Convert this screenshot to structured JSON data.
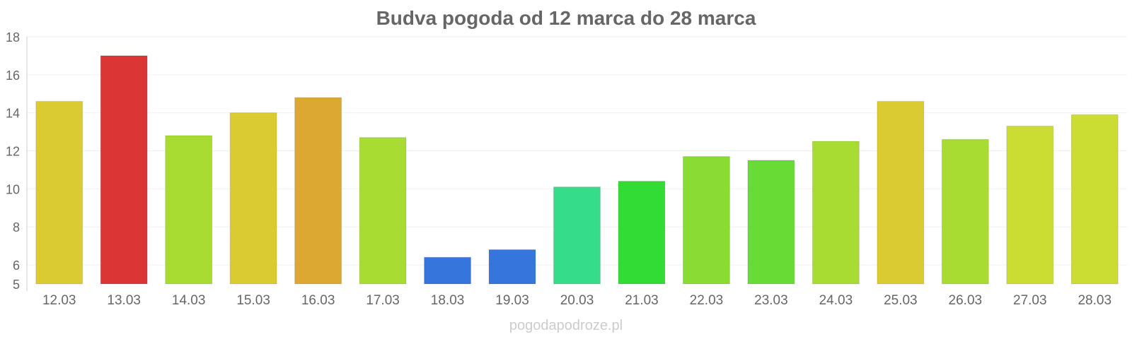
{
  "chart_data": {
    "type": "bar",
    "title": "Budva pogoda od 12 marca do 28 marca",
    "categories": [
      "12.03",
      "13.03",
      "14.03",
      "15.03",
      "16.03",
      "17.03",
      "18.03",
      "19.03",
      "20.03",
      "21.03",
      "22.03",
      "23.03",
      "24.03",
      "25.03",
      "26.03",
      "27.03",
      "28.03"
    ],
    "values": [
      14.6,
      17.0,
      12.8,
      14.0,
      14.8,
      12.7,
      6.4,
      6.8,
      10.1,
      10.4,
      11.7,
      11.5,
      12.5,
      14.6,
      12.6,
      13.3,
      13.9
    ],
    "colors": [
      "#dbcb32",
      "#dc3535",
      "#a8dc32",
      "#dbcb32",
      "#dca832",
      "#a8dc32",
      "#3575dc",
      "#3575dc",
      "#35dc8a",
      "#32dc35",
      "#8adc35",
      "#68dc35",
      "#a8dc32",
      "#dbcb32",
      "#a8dc32",
      "#cbdc32",
      "#cbdc32"
    ],
    "ylim": [
      5,
      18
    ],
    "yticks": [
      5,
      6,
      8,
      10,
      12,
      14,
      16,
      18
    ],
    "grid": true,
    "legend": "none"
  },
  "watermark": "pogodapodroze.pl"
}
